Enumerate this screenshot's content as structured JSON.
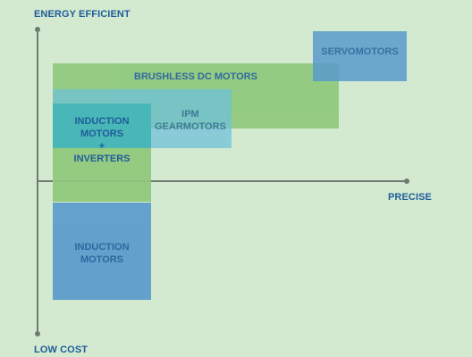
{
  "axes": {
    "top_label": "ENERGY EFFICIENT",
    "bottom_label": "LOW COST",
    "right_label": "PRECISE"
  },
  "colors": {
    "background": "#d3ead0",
    "label_text": "#1f5c9a",
    "axis_line": "#6f7a72",
    "green_region": "#8ec87a",
    "blue_region": "#5a9bcc",
    "teal_region": "#3ab3b4",
    "light_blue_region": "#6ec0dc"
  },
  "regions": {
    "servomotors": {
      "label": "SERVOMOTORS"
    },
    "brushless_dc_motors": {
      "label": "BRUSHLESS DC MOTORS"
    },
    "ipm_gearmotors": {
      "label": "IPM\nGEARMOTORS"
    },
    "induction_motors_inverters": {
      "label": "INDUCTION\nMOTORS\n+\nINVERTERS"
    },
    "induction_motors": {
      "label": "INDUCTION\nMOTORS"
    }
  }
}
